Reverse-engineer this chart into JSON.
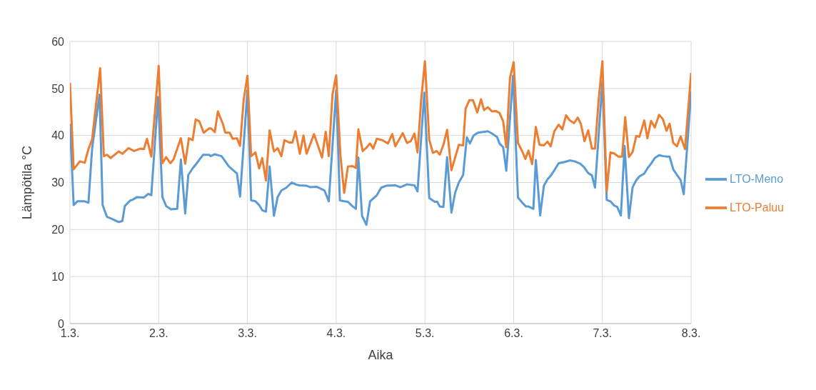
{
  "chart_data": {
    "type": "line",
    "xlabel": "Aika",
    "ylabel": "Lämpötila °C",
    "xlim": [
      "--03-01",
      "--03-08"
    ],
    "xticks": [
      {
        "value": "--03-01",
        "label": "1.3."
      },
      {
        "value": "--03-02",
        "label": "2.3."
      },
      {
        "value": "--03-03",
        "label": "3.3."
      },
      {
        "value": "--03-04",
        "label": "4.3."
      },
      {
        "value": "--03-05",
        "label": "5.3."
      },
      {
        "value": "--03-06",
        "label": "6.3."
      },
      {
        "value": "--03-07",
        "label": "7.3."
      },
      {
        "value": "--03-08",
        "label": "8.3."
      }
    ],
    "ylim": [
      0,
      60
    ],
    "yticks": [
      0,
      10,
      20,
      30,
      40,
      50,
      60
    ],
    "grid": true,
    "legend": "right",
    "marker": "none",
    "line_style": "solid",
    "series": [
      {
        "name": "LTO-Meno",
        "color": "#5b9bd5",
        "x": [
          "--03-01T00:00",
          "--03-01T01:00",
          "--03-01T02:00",
          "--03-01T04:00",
          "--03-01T05:00",
          "--03-01T06:00",
          "--03-01T08:00",
          "--03-01T08:50",
          "--03-01T10:00",
          "--03-01T11:00",
          "--03-01T13:10",
          "--03-01T14:10",
          "--03-01T14:50",
          "--03-01T16:20",
          "--03-01T16:50",
          "--03-01T18:10",
          "--03-01T20:00",
          "--03-01T21:10",
          "--03-01T22:00",
          "--03-01T23:50",
          "--03-02T01:00",
          "--03-02T02:00",
          "--03-02T03:20",
          "--03-02T05:00",
          "--03-02T06:00",
          "--03-02T07:10",
          "--03-02T08:00",
          "--03-02T09:10",
          "--03-02T10:00",
          "--03-02T12:00",
          "--03-02T13:40",
          "--03-02T14:00",
          "--03-02T15:10",
          "--03-02T17:00",
          "--03-02T19:00",
          "--03-02T21:10",
          "--03-02T22:00",
          "--03-03T00:00",
          "--03-03T01:00",
          "--03-03T02:10",
          "--03-03T03:10",
          "--03-03T04:00",
          "--03-03T05:00",
          "--03-03T06:00",
          "--03-03T07:10",
          "--03-03T08:10",
          "--03-03T09:10",
          "--03-03T10:30",
          "--03-03T12:00",
          "--03-03T13:00",
          "--03-03T14:00",
          "--03-03T16:00",
          "--03-03T17:00",
          "--03-03T18:40",
          "--03-03T20:50",
          "--03-03T22:00",
          "--03-04T00:00",
          "--03-04T01:00",
          "--03-04T02:10",
          "--03-04T03:10",
          "--03-04T04:20",
          "--03-04T05:20",
          "--03-04T06:00",
          "--03-04T07:00",
          "--03-04T08:10",
          "--03-04T09:10",
          "--03-04T11:00",
          "--03-04T12:10",
          "--03-04T13:30",
          "--03-04T16:00",
          "--03-04T17:20",
          "--03-04T19:10",
          "--03-04T21:10",
          "--03-04T22:00",
          "--03-04T23:50",
          "--03-05T01:10",
          "--03-05T02:40",
          "--03-05T03:20",
          "--03-05T04:00",
          "--03-05T05:00",
          "--03-05T06:00",
          "--03-05T07:10",
          "--03-05T08:10",
          "--03-05T09:10",
          "--03-05T10:20",
          "--03-05T11:20",
          "--03-05T12:10",
          "--03-05T13:10",
          "--03-05T14:20",
          "--03-05T17:00",
          "--03-05T18:10",
          "--03-05T19:30",
          "--03-05T20:10",
          "--03-05T21:10",
          "--03-05T22:00",
          "--03-05T23:50",
          "--03-06T01:10",
          "--03-06T02:20",
          "--03-06T03:20",
          "--03-06T04:00",
          "--03-06T05:20",
          "--03-06T06:00",
          "--03-06T07:10",
          "--03-06T08:10",
          "--03-06T09:10",
          "--03-06T10:00",
          "--03-06T11:00",
          "--03-06T12:10",
          "--03-06T14:00",
          "--03-06T15:10",
          "--03-06T16:30",
          "--03-06T18:00",
          "--03-06T19:00",
          "--03-06T20:10",
          "--03-06T21:10",
          "--03-06T22:00",
          "--03-07T00:00",
          "--03-07T01:10",
          "--03-07T02:10",
          "--03-07T03:10",
          "--03-07T04:00",
          "--03-07T05:00",
          "--03-07T06:00",
          "--03-07T07:10",
          "--03-07T08:10",
          "--03-07T09:10",
          "--03-07T10:00",
          "--03-07T11:20",
          "--03-07T12:10",
          "--03-07T13:10",
          "--03-07T14:10",
          "--03-07T15:20",
          "--03-07T16:30",
          "--03-07T17:30",
          "--03-07T18:10",
          "--03-07T19:10",
          "--03-07T20:10",
          "--03-07T21:10",
          "--03-07T22:00",
          "--03-08T00:00"
        ],
        "values": [
          42.5,
          25.2,
          26.0,
          26.0,
          25.7,
          37.3,
          48.7,
          25.2,
          22.7,
          22.4,
          21.6,
          21.8,
          25.0,
          26.2,
          26.3,
          26.9,
          26.8,
          27.6,
          27.3,
          48.2,
          26.9,
          25.0,
          24.3,
          24.4,
          34.9,
          23.4,
          31.6,
          33.0,
          33.8,
          35.9,
          35.9,
          35.6,
          36.0,
          35.6,
          33.4,
          31.9,
          27.0,
          49.6,
          26.2,
          26.0,
          25.2,
          24.1,
          23.8,
          33.4,
          22.9,
          26.9,
          28.3,
          28.9,
          30.0,
          29.6,
          29.4,
          29.3,
          29.0,
          29.1,
          28.3,
          26.0,
          49.6,
          26.2,
          26.0,
          25.9,
          25.0,
          24.4,
          35.3,
          22.9,
          21.0,
          26.0,
          27.3,
          28.9,
          29.3,
          29.4,
          29.0,
          29.6,
          29.4,
          28.1,
          49.1,
          26.7,
          25.9,
          25.9,
          24.9,
          24.8,
          35.4,
          23.6,
          27.8,
          30.0,
          31.6,
          39.6,
          38.3,
          40.0,
          40.6,
          40.9,
          40.4,
          39.7,
          38.3,
          37.5,
          32.5,
          52.7,
          26.8,
          25.7,
          24.9,
          24.9,
          24.4,
          34.8,
          23.0,
          29.3,
          30.7,
          31.4,
          32.6,
          34.1,
          34.4,
          34.7,
          34.5,
          34.0,
          33.3,
          32.0,
          31.5,
          28.9,
          51.5,
          26.3,
          26.0,
          25.1,
          24.8,
          23.0,
          37.8,
          22.4,
          29.0,
          30.5,
          31.3,
          31.9,
          33.0,
          34.0,
          35.2,
          35.8,
          35.6,
          35.5,
          35.5,
          32.8,
          31.6,
          30.5,
          27.5,
          49.4
        ]
      },
      {
        "name": "LTO-Paluu",
        "color": "#ed7d31",
        "x": [
          "--03-01T00:00",
          "--03-01T01:00",
          "--03-01T02:40",
          "--03-01T04:00",
          "--03-01T05:00",
          "--03-01T06:00",
          "--03-01T08:10",
          "--03-01T09:10",
          "--03-01T10:00",
          "--03-01T11:00",
          "--03-01T13:10",
          "--03-01T14:10",
          "--03-01T15:50",
          "--03-01T17:20",
          "--03-01T19:00",
          "--03-01T20:00",
          "--03-01T20:50",
          "--03-01T22:00",
          "--03-02T00:00",
          "--03-02T01:00",
          "--03-02T02:00",
          "--03-02T03:10",
          "--03-02T04:00",
          "--03-02T06:00",
          "--03-02T07:10",
          "--03-02T08:10",
          "--03-02T09:10",
          "--03-02T10:00",
          "--03-02T11:00",
          "--03-02T12:10",
          "--03-02T13:40",
          "--03-02T14:10",
          "--03-02T15:10",
          "--03-02T16:00",
          "--03-02T17:20",
          "--03-02T18:00",
          "--03-02T19:10",
          "--03-02T20:00",
          "--03-02T21:10",
          "--03-02T22:00",
          "--03-02T23:00",
          "--03-03T00:00",
          "--03-03T01:00",
          "--03-03T02:10",
          "--03-03T03:10",
          "--03-03T04:00",
          "--03-03T05:00",
          "--03-03T06:00",
          "--03-03T07:10",
          "--03-03T08:10",
          "--03-03T09:10",
          "--03-03T10:00",
          "--03-03T11:20",
          "--03-03T12:10",
          "--03-03T13:00",
          "--03-03T14:10",
          "--03-03T15:10",
          "--03-03T16:00",
          "--03-03T18:00",
          "--03-03T20:10",
          "--03-03T21:10",
          "--03-03T22:00",
          "--03-03T23:00",
          "--03-04T00:00",
          "--03-04T01:10",
          "--03-04T02:10",
          "--03-04T03:10",
          "--03-04T04:20",
          "--03-04T05:20",
          "--03-04T06:00",
          "--03-04T07:10",
          "--03-04T08:10",
          "--03-04T09:10",
          "--03-04T10:00",
          "--03-04T11:00",
          "--03-04T12:30",
          "--03-04T14:00",
          "--03-04T15:10",
          "--03-04T16:00",
          "--03-04T18:00",
          "--03-04T19:10",
          "--03-04T20:10",
          "--03-04T21:10",
          "--03-04T22:00",
          "--03-04T23:00",
          "--03-05T00:00",
          "--03-05T01:10",
          "--03-05T02:10",
          "--03-05T03:10",
          "--03-05T04:00",
          "--03-05T05:00",
          "--03-05T06:00",
          "--03-05T07:10",
          "--03-05T09:10",
          "--03-05T10:20",
          "--03-05T11:00",
          "--03-05T12:00",
          "--03-05T13:00",
          "--03-05T14:10",
          "--03-05T15:10",
          "--03-05T16:00",
          "--03-05T17:00",
          "--03-05T18:10",
          "--03-05T19:10",
          "--03-05T20:10",
          "--03-05T21:10",
          "--03-05T22:00",
          "--03-05T23:00",
          "--03-06T00:00",
          "--03-06T01:10",
          "--03-06T02:20",
          "--03-06T03:10",
          "--03-06T04:00",
          "--03-06T05:00",
          "--03-06T06:00",
          "--03-06T07:00",
          "--03-06T08:10",
          "--03-06T09:10",
          "--03-06T10:00",
          "--03-06T11:00",
          "--03-06T12:10",
          "--03-06T13:10",
          "--03-06T14:10",
          "--03-06T15:10",
          "--03-06T16:20",
          "--03-06T17:20",
          "--03-06T18:10",
          "--03-06T19:10",
          "--03-06T20:10",
          "--03-06T21:10",
          "--03-06T22:00",
          "--03-06T23:00",
          "--03-07T00:00",
          "--03-07T01:10",
          "--03-07T02:10",
          "--03-07T03:10",
          "--03-07T04:20",
          "--03-07T05:20",
          "--03-07T06:10",
          "--03-07T07:10",
          "--03-07T08:10",
          "--03-07T09:10",
          "--03-07T10:00",
          "--03-07T11:20",
          "--03-07T12:10",
          "--03-07T13:10",
          "--03-07T14:10",
          "--03-07T15:20",
          "--03-07T16:20",
          "--03-07T17:20",
          "--03-07T18:10",
          "--03-07T19:10",
          "--03-07T20:10",
          "--03-07T21:10",
          "--03-07T22:20",
          "--03-08T00:00"
        ],
        "values": [
          51.2,
          32.8,
          34.5,
          34.2,
          37.1,
          39.2,
          54.3,
          35.6,
          35.9,
          35.2,
          36.6,
          36.1,
          37.3,
          36.7,
          37.2,
          37.1,
          39.3,
          35.5,
          54.8,
          34.1,
          35.4,
          34.1,
          34.9,
          39.4,
          34.0,
          39.4,
          39.0,
          43.4,
          43.0,
          40.6,
          41.5,
          41.5,
          40.7,
          45.1,
          42.5,
          40.6,
          40.6,
          39.3,
          39.4,
          37.8,
          47.7,
          52.7,
          35.6,
          36.4,
          33.0,
          35.2,
          30.4,
          41.1,
          36.6,
          37.3,
          35.6,
          39.0,
          38.5,
          38.5,
          40.9,
          36.1,
          40.0,
          36.1,
          40.3,
          35.3,
          40.8,
          35.6,
          48.7,
          52.8,
          35.6,
          27.8,
          33.4,
          33.5,
          33.1,
          41.3,
          36.7,
          37.4,
          38.3,
          37.2,
          39.3,
          39.0,
          38.3,
          40.3,
          37.7,
          40.5,
          38.4,
          38.8,
          40.4,
          36.4,
          47.7,
          55.8,
          39.1,
          36.3,
          36.7,
          35.9,
          38.0,
          41.2,
          32.6,
          38.0,
          37.9,
          45.7,
          47.5,
          47.5,
          44.9,
          47.7,
          45.4,
          46.0,
          45.1,
          45.2,
          44.8,
          43.0,
          37.5,
          52.2,
          55.6,
          38.4,
          36.6,
          35.0,
          36.8,
          33.9,
          41.8,
          38.0,
          37.9,
          38.7,
          37.7,
          40.9,
          42.3,
          41.3,
          44.3,
          43.2,
          42.6,
          43.8,
          42.5,
          38.8,
          41.1,
          37.2,
          37.2,
          47.7,
          55.8,
          28.1,
          36.4,
          36.2,
          35.5,
          35.5,
          43.9,
          35.4,
          36.5,
          39.9,
          39.7,
          43.2,
          39.4,
          43.1,
          41.7,
          44.4,
          43.5,
          41.0,
          42.5,
          38.4,
          37.7,
          39.8,
          37.1,
          53.3
        ]
      }
    ]
  }
}
